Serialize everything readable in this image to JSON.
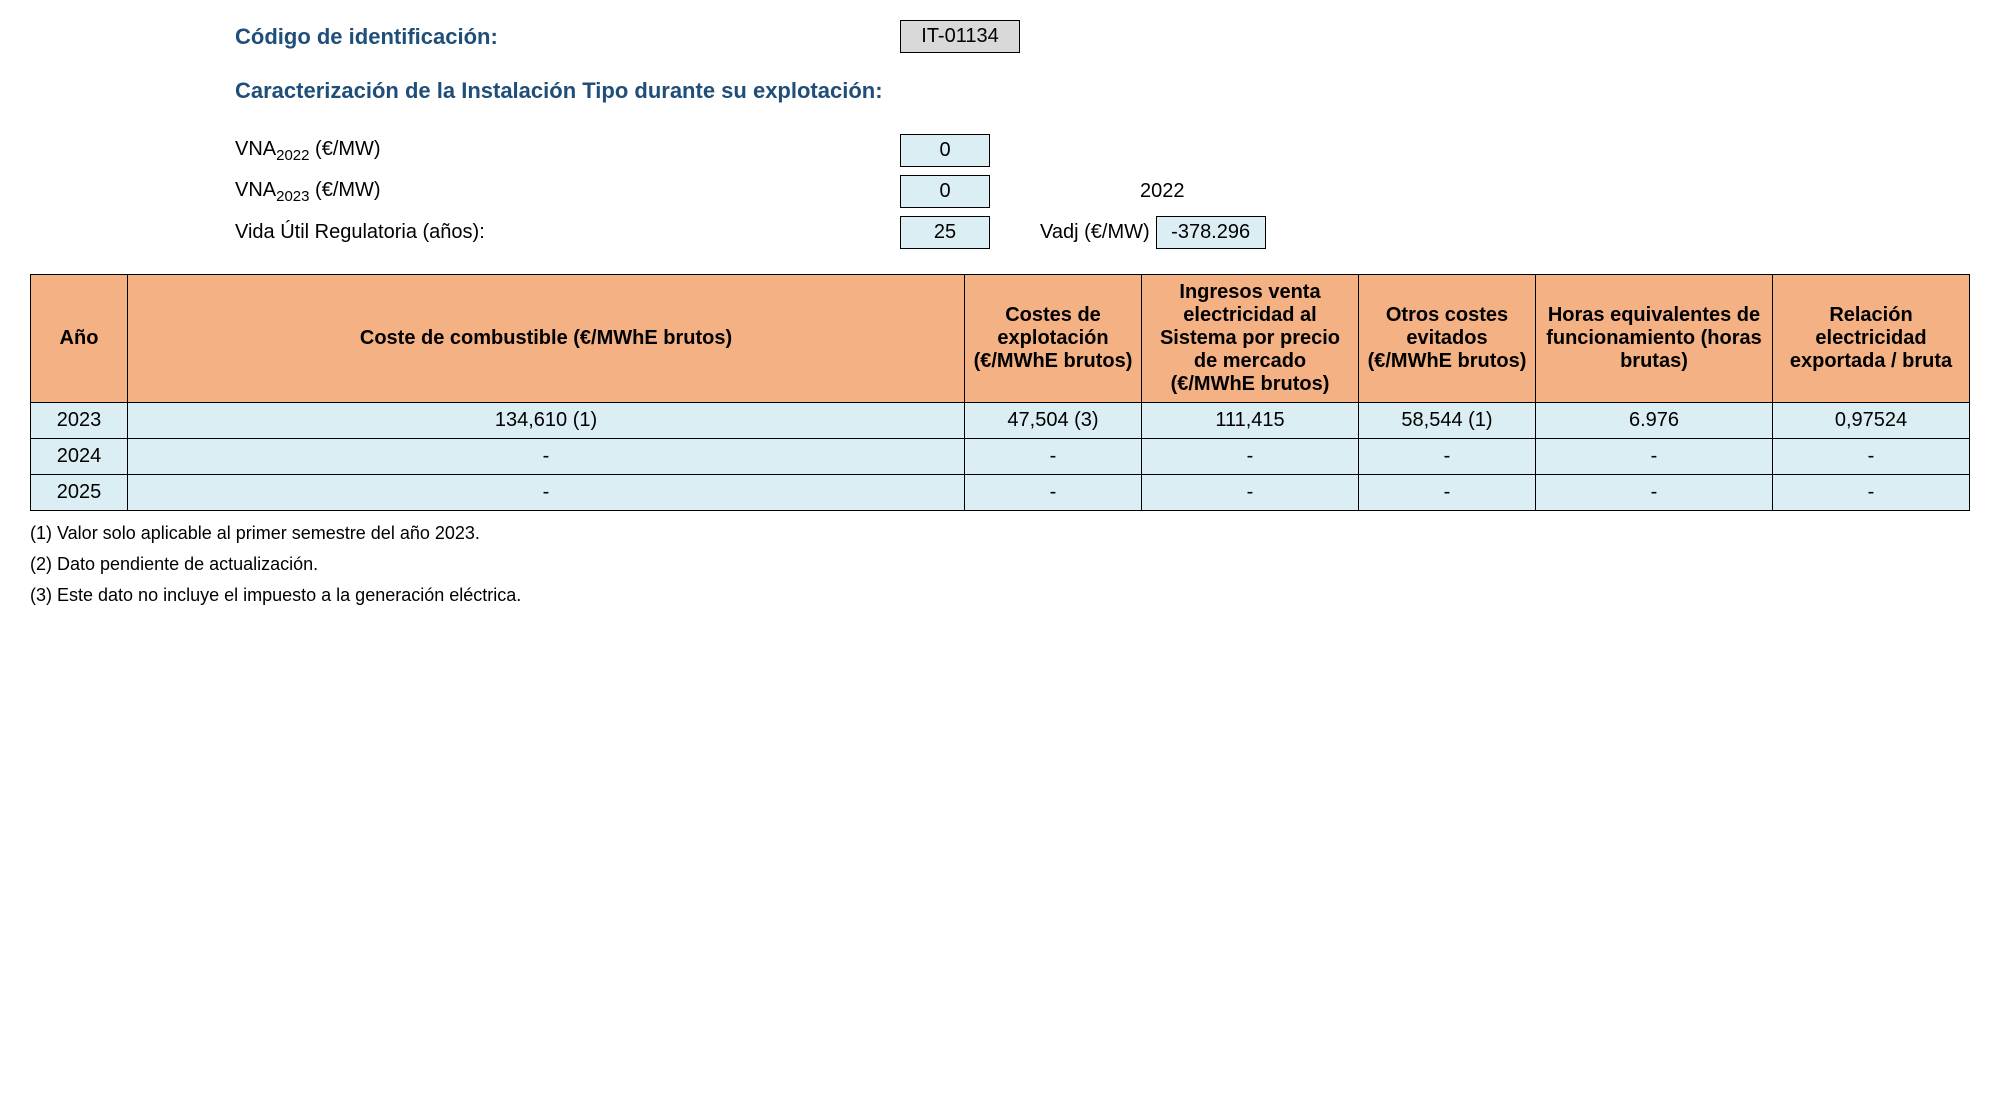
{
  "header": {
    "codigo_label": "Código de identificación:",
    "codigo_value": "IT-01134",
    "caract_label": "Caracterización de la Instalación Tipo durante su explotación:"
  },
  "params": {
    "vna2022_prefix": "VNA",
    "vna2022_sub": "2022",
    "vna2022_suffix": " (€/MW)",
    "vna2022_value": "0",
    "vna2023_prefix": "VNA",
    "vna2023_sub": "2023",
    "vna2023_suffix": " (€/MW)",
    "vna2023_value": "0",
    "year_right": "2022",
    "vida_label": "Vida Útil Regulatoria (años):",
    "vida_value": "25",
    "vadj_label": "Vadj (€/MW)",
    "vadj_value": "-378.296"
  },
  "table": {
    "columns": [
      "Año",
      "Coste de combustible (€/MWhE brutos)",
      "Costes de explotación (€/MWhE brutos)",
      "Ingresos venta electricidad al Sistema por precio de mercado (€/MWhE brutos)",
      "Otros costes evitados (€/MWhE brutos)",
      "Horas equivalentes de funcionamiento (horas brutas)",
      "Relación electricidad exportada / bruta"
    ],
    "col_widths": [
      "80px",
      "auto",
      "160px",
      "200px",
      "160px",
      "220px",
      "180px"
    ],
    "rows": [
      [
        "2023",
        "134,610 (1)",
        "47,504 (3)",
        "111,415",
        "58,544 (1)",
        "6.976",
        "0,97524"
      ],
      [
        "2024",
        "-",
        "-",
        "-",
        "-",
        "-",
        "-"
      ],
      [
        "2025",
        "-",
        "-",
        "-",
        "-",
        "-",
        "-"
      ]
    ],
    "header_bg": "#f4b183",
    "cell_bg": "#dbeef4",
    "border_color": "#000000"
  },
  "footnotes": [
    "(1) Valor solo aplicable al primer semestre del año 2023.",
    "(2) Dato pendiente de actualización.",
    "(3) Este dato no incluye el impuesto a la generación eléctrica."
  ]
}
